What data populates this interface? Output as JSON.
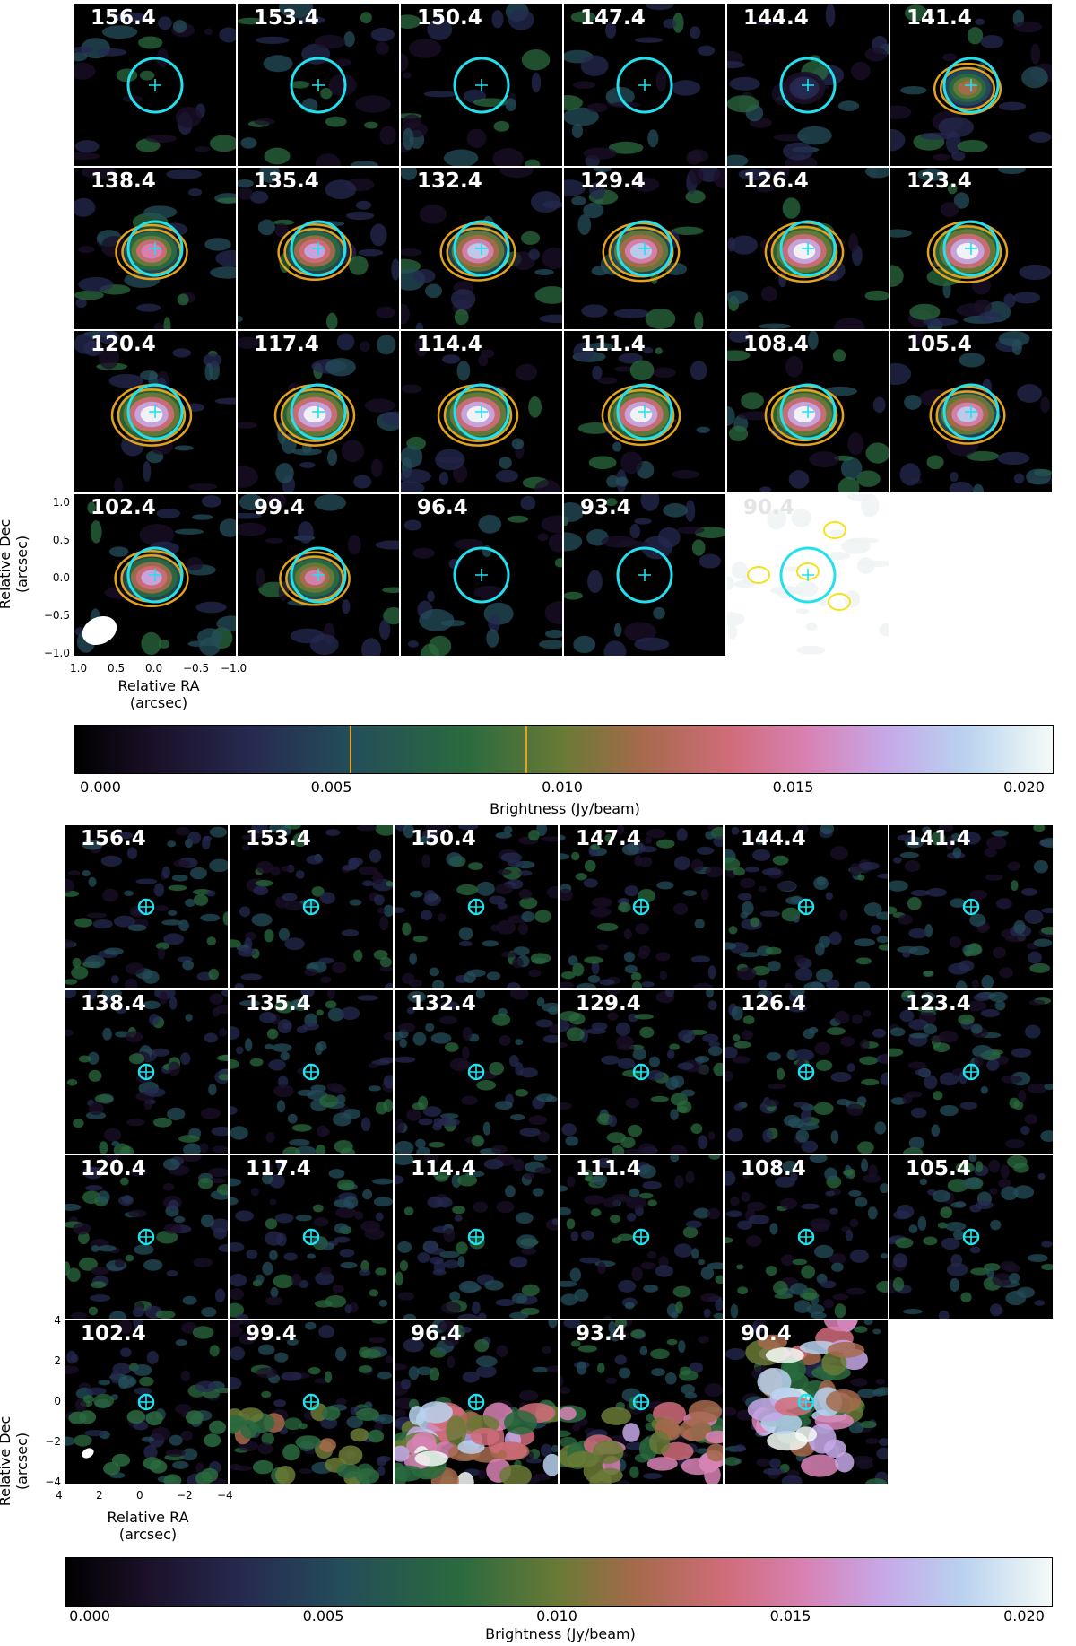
{
  "chart_data": [
    {
      "type": "heatmap",
      "description_kind": "channel map grid",
      "channels": [
        "156.4",
        "153.4",
        "150.4",
        "147.4",
        "144.4",
        "141.4",
        "138.4",
        "135.4",
        "132.4",
        "129.4",
        "126.4",
        "123.4",
        "120.4",
        "117.4",
        "114.4",
        "111.4",
        "108.4",
        "105.4",
        "102.4",
        "99.4",
        "96.4",
        "93.4",
        "90.4"
      ],
      "emission_peak": [
        0.0,
        0.0,
        0.0,
        0.0,
        0.004,
        0.012,
        0.015,
        0.016,
        0.017,
        0.018,
        0.019,
        0.02,
        0.02,
        0.02,
        0.02,
        0.019,
        0.019,
        0.017,
        0.016,
        0.014,
        0.0,
        0.0,
        0.0
      ],
      "contour_levels": [
        0.0054,
        0.009
      ],
      "contour_color": "#e3a21a",
      "circle_color": "#22e0ee",
      "xlabel": "Relative RA\n(arcsec)",
      "ylabel": "Relative Dec\n(arcsec)",
      "xticks": [
        "1.0",
        "0.5",
        "0.0",
        "−0.5",
        "−1.0"
      ],
      "yticks": [
        "1.0",
        "0.5",
        "0.0",
        "−0.5",
        "−1.0"
      ],
      "xlim": [
        1.0,
        -1.0
      ],
      "ylim": [
        -1.0,
        1.0
      ],
      "colorbar": {
        "label": "Brightness (Jy/beam)",
        "ticks": [
          "0.000",
          "0.005",
          "0.010",
          "0.015",
          "0.020"
        ],
        "range": [
          0.0,
          0.02
        ],
        "marked_levels": [
          0.0054,
          0.009
        ]
      }
    },
    {
      "type": "heatmap",
      "description_kind": "channel map grid",
      "channels": [
        "156.4",
        "153.4",
        "150.4",
        "147.4",
        "144.4",
        "141.4",
        "138.4",
        "135.4",
        "132.4",
        "129.4",
        "126.4",
        "123.4",
        "120.4",
        "117.4",
        "114.4",
        "111.4",
        "108.4",
        "105.4",
        "102.4",
        "99.4",
        "96.4",
        "93.4",
        "90.4"
      ],
      "extended_emission": [
        0,
        0,
        0,
        0,
        0,
        0,
        0,
        0,
        0,
        0,
        0,
        0,
        0,
        0,
        0,
        0,
        0,
        0,
        0.002,
        0.008,
        0.02,
        0.014,
        0.02
      ],
      "xlabel": "Relative RA\n(arcsec)",
      "ylabel": "Relative Dec\n(arcsec)",
      "xticks": [
        "4",
        "2",
        "0",
        "−2",
        "−4"
      ],
      "yticks": [
        "4",
        "2",
        "0",
        "−2",
        "−4"
      ],
      "xlim": [
        4,
        -4
      ],
      "ylim": [
        -4,
        4
      ],
      "colorbar": {
        "label": "Brightness (Jy/beam)",
        "ticks": [
          "0.000",
          "0.005",
          "0.010",
          "0.015",
          "0.020"
        ],
        "range": [
          0.0,
          0.02
        ]
      }
    }
  ]
}
